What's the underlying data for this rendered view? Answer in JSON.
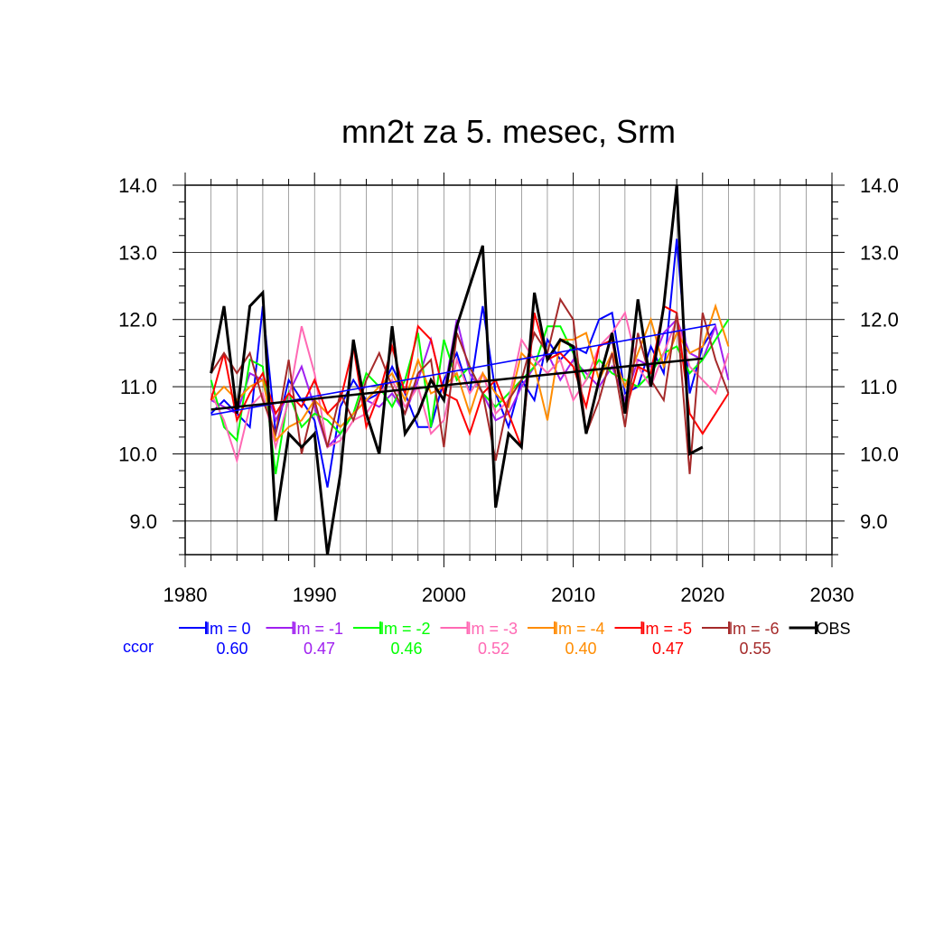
{
  "chart_data": {
    "type": "line",
    "title": "mn2t za 5. mesec, Srm",
    "xlabel": "",
    "ylabel": "",
    "xlim": [
      1980,
      2030
    ],
    "ylim": [
      8.5,
      14.0
    ],
    "x_ticks": [
      "1980",
      "1990",
      "2000",
      "2010",
      "2020",
      "2030"
    ],
    "y_ticks": [
      "9.0",
      "10.0",
      "11.0",
      "12.0",
      "13.0",
      "14.0"
    ],
    "grid": true,
    "legend_position": "bottom",
    "ccor_label": "ccor",
    "series": [
      {
        "name": "lm = 0",
        "color": "#0000ff",
        "ccor": "0.60",
        "x": [
          1982,
          1983,
          1984,
          1985,
          1986,
          1987,
          1988,
          1989,
          1990,
          1991,
          1992,
          1993,
          1994,
          1995,
          1996,
          1997,
          1998,
          1999,
          2000,
          2001,
          2002,
          2003,
          2004,
          2005,
          2006,
          2007,
          2008,
          2009,
          2010,
          2011,
          2012,
          2013,
          2014,
          2015,
          2016,
          2017,
          2018,
          2019,
          2020,
          2021
        ],
        "y": [
          10.6,
          10.8,
          10.6,
          10.4,
          12.2,
          10.3,
          11.1,
          10.8,
          10.5,
          9.5,
          10.7,
          11.1,
          10.8,
          10.9,
          11.3,
          10.9,
          10.4,
          10.4,
          11.1,
          11.5,
          10.9,
          12.2,
          10.9,
          10.4,
          11.1,
          10.8,
          11.7,
          11.4,
          11.6,
          11.5,
          12.0,
          12.1,
          10.9,
          11.0,
          11.6,
          11.2,
          13.2,
          10.9,
          11.6,
          11.9
        ],
        "trend": [
          [
            1982,
            10.58
          ],
          [
            2021,
            11.93
          ]
        ]
      },
      {
        "name": "lm = -1",
        "color": "#a020f0",
        "ccor": "0.47",
        "x": [
          1982,
          1983,
          1984,
          1985,
          1986,
          1987,
          1988,
          1989,
          1990,
          1991,
          1992,
          1993,
          1994,
          1995,
          1996,
          1997,
          1998,
          1999,
          2000,
          2001,
          2002,
          2003,
          2004,
          2005,
          2006,
          2007,
          2008,
          2009,
          2010,
          2011,
          2012,
          2013,
          2014,
          2015,
          2016,
          2017,
          2018,
          2019,
          2020,
          2021,
          2022
        ],
        "y": [
          10.8,
          10.7,
          10.6,
          11.2,
          11.1,
          10.5,
          10.9,
          11.3,
          10.7,
          10.1,
          10.3,
          10.6,
          10.8,
          10.7,
          10.9,
          10.6,
          11.1,
          11.7,
          10.9,
          12.0,
          11.2,
          10.9,
          10.5,
          10.6,
          11.0,
          11.3,
          11.5,
          11.1,
          11.4,
          11.2,
          11.0,
          11.3,
          10.8,
          11.4,
          11.3,
          11.8,
          12.0,
          11.5,
          11.4,
          11.9,
          11.1
        ]
      },
      {
        "name": "lm = -2",
        "color": "#00ff00",
        "ccor": "0.46",
        "x": [
          1982,
          1983,
          1984,
          1985,
          1986,
          1987,
          1988,
          1989,
          1990,
          1991,
          1992,
          1993,
          1994,
          1995,
          1996,
          1997,
          1998,
          1999,
          2000,
          2001,
          2002,
          2003,
          2004,
          2005,
          2006,
          2007,
          2008,
          2009,
          2010,
          2011,
          2012,
          2013,
          2014,
          2015,
          2016,
          2017,
          2018,
          2019,
          2020,
          2021,
          2022
        ],
        "y": [
          11.1,
          10.4,
          10.2,
          11.4,
          11.3,
          9.7,
          10.9,
          10.4,
          10.6,
          10.5,
          10.3,
          10.6,
          11.2,
          11.0,
          10.7,
          11.1,
          11.8,
          10.4,
          11.7,
          11.1,
          11.3,
          10.9,
          10.7,
          10.9,
          11.1,
          11.3,
          11.9,
          11.9,
          11.5,
          11.1,
          11.4,
          11.2,
          11.1,
          11.0,
          11.2,
          11.5,
          11.6,
          11.2,
          11.4,
          11.7,
          12.0
        ]
      },
      {
        "name": "lm = -3",
        "color": "#ff69b4",
        "ccor": "0.52",
        "x": [
          1982,
          1983,
          1984,
          1985,
          1986,
          1987,
          1988,
          1989,
          1990,
          1991,
          1992,
          1993,
          1994,
          1995,
          1996,
          1997,
          1998,
          1999,
          2000,
          2001,
          2002,
          2003,
          2004,
          2005,
          2006,
          2007,
          2008,
          2009,
          2010,
          2011,
          2012,
          2013,
          2014,
          2015,
          2016,
          2017,
          2018,
          2019,
          2020,
          2021,
          2022
        ],
        "y": [
          10.9,
          10.5,
          9.9,
          10.7,
          10.9,
          10.1,
          10.8,
          11.9,
          11.2,
          10.1,
          10.2,
          10.5,
          10.6,
          10.9,
          11.1,
          10.7,
          11.0,
          10.3,
          10.5,
          11.4,
          10.9,
          11.2,
          10.6,
          10.8,
          11.7,
          11.4,
          11.2,
          11.4,
          10.8,
          11.1,
          11.6,
          11.8,
          12.1,
          11.3,
          11.0,
          11.5,
          12.0,
          11.3,
          11.1,
          10.9,
          11.5
        ]
      },
      {
        "name": "lm = -4",
        "color": "#ff8c00",
        "ccor": "0.40",
        "x": [
          1982,
          1983,
          1984,
          1985,
          1986,
          1987,
          1988,
          1989,
          1990,
          1991,
          1992,
          1993,
          1994,
          1995,
          1996,
          1997,
          1998,
          1999,
          2000,
          2001,
          2002,
          2003,
          2004,
          2005,
          2006,
          2007,
          2008,
          2009,
          2010,
          2011,
          2012,
          2013,
          2014,
          2015,
          2016,
          2017,
          2018,
          2019,
          2020,
          2021,
          2022
        ],
        "y": [
          10.8,
          11.0,
          10.8,
          11.0,
          11.1,
          10.2,
          10.4,
          10.5,
          10.8,
          10.6,
          10.4,
          10.6,
          10.8,
          11.0,
          11.2,
          10.8,
          11.4,
          10.9,
          11.0,
          11.2,
          10.6,
          11.2,
          10.9,
          10.7,
          11.5,
          11.3,
          10.5,
          11.7,
          11.7,
          11.8,
          11.1,
          11.5,
          11.0,
          11.5,
          12.0,
          11.3,
          11.8,
          11.5,
          11.6,
          12.2,
          11.6
        ]
      },
      {
        "name": "lm = -5",
        "color": "#ff0000",
        "ccor": "0.47",
        "x": [
          1982,
          1983,
          1984,
          1985,
          1986,
          1987,
          1988,
          1989,
          1990,
          1991,
          1992,
          1993,
          1994,
          1995,
          1996,
          1997,
          1998,
          1999,
          2000,
          2001,
          2002,
          2003,
          2004,
          2005,
          2006,
          2007,
          2008,
          2009,
          2010,
          2011,
          2012,
          2013,
          2014,
          2015,
          2016,
          2017,
          2018,
          2019,
          2020,
          2021,
          2022
        ],
        "y": [
          10.8,
          11.5,
          10.5,
          10.9,
          11.2,
          10.6,
          10.9,
          10.7,
          11.1,
          10.6,
          10.8,
          11.6,
          10.4,
          10.9,
          11.6,
          10.9,
          11.9,
          11.7,
          10.9,
          10.8,
          10.3,
          10.9,
          11.1,
          10.6,
          10.1,
          12.1,
          11.4,
          11.5,
          11.3,
          10.7,
          11.6,
          11.7,
          10.6,
          11.3,
          11.2,
          12.2,
          12.1,
          10.6,
          10.3,
          10.6,
          10.9
        ]
      },
      {
        "name": "lm = -6",
        "color": "#a52a2a",
        "ccor": "0.55",
        "x": [
          1982,
          1983,
          1984,
          1985,
          1986,
          1987,
          1988,
          1989,
          1990,
          1991,
          1992,
          1993,
          1994,
          1995,
          1996,
          1997,
          1998,
          1999,
          2000,
          2001,
          2002,
          2003,
          2004,
          2005,
          2006,
          2007,
          2008,
          2009,
          2010,
          2011,
          2012,
          2013,
          2014,
          2015,
          2016,
          2017,
          2018,
          2019,
          2020,
          2021,
          2022
        ],
        "y": [
          11.2,
          11.5,
          11.2,
          11.5,
          10.8,
          10.3,
          11.4,
          10.0,
          10.8,
          10.1,
          10.9,
          10.5,
          11.1,
          11.5,
          11.0,
          10.6,
          11.2,
          11.4,
          10.1,
          11.8,
          11.3,
          10.9,
          9.9,
          10.8,
          11.1,
          11.8,
          11.5,
          12.3,
          12.0,
          10.3,
          10.8,
          11.5,
          10.4,
          11.8,
          11.1,
          10.8,
          12.1,
          9.7,
          12.1,
          11.4,
          10.9
        ]
      },
      {
        "name": "OBS",
        "color": "#000000",
        "ccor": "",
        "x": [
          1982,
          1983,
          1984,
          1985,
          1986,
          1987,
          1988,
          1989,
          1990,
          1991,
          1992,
          1993,
          1994,
          1995,
          1996,
          1997,
          1998,
          1999,
          2000,
          2001,
          2002,
          2003,
          2004,
          2005,
          2006,
          2007,
          2008,
          2009,
          2010,
          2011,
          2012,
          2013,
          2014,
          2015,
          2016,
          2017,
          2018,
          2019,
          2020
        ],
        "y": [
          11.2,
          12.2,
          10.6,
          12.2,
          12.4,
          9.0,
          10.3,
          10.1,
          10.3,
          8.5,
          9.7,
          11.7,
          10.6,
          10.0,
          11.9,
          10.3,
          10.6,
          11.1,
          10.8,
          11.9,
          12.5,
          13.1,
          9.2,
          10.3,
          10.1,
          12.4,
          11.4,
          11.7,
          11.6,
          10.3,
          11.1,
          11.8,
          10.6,
          12.3,
          11.0,
          12.2,
          14.0,
          10.0,
          10.1
        ],
        "trend": [
          [
            1982,
            10.66
          ],
          [
            2020,
            11.42
          ]
        ]
      }
    ]
  }
}
